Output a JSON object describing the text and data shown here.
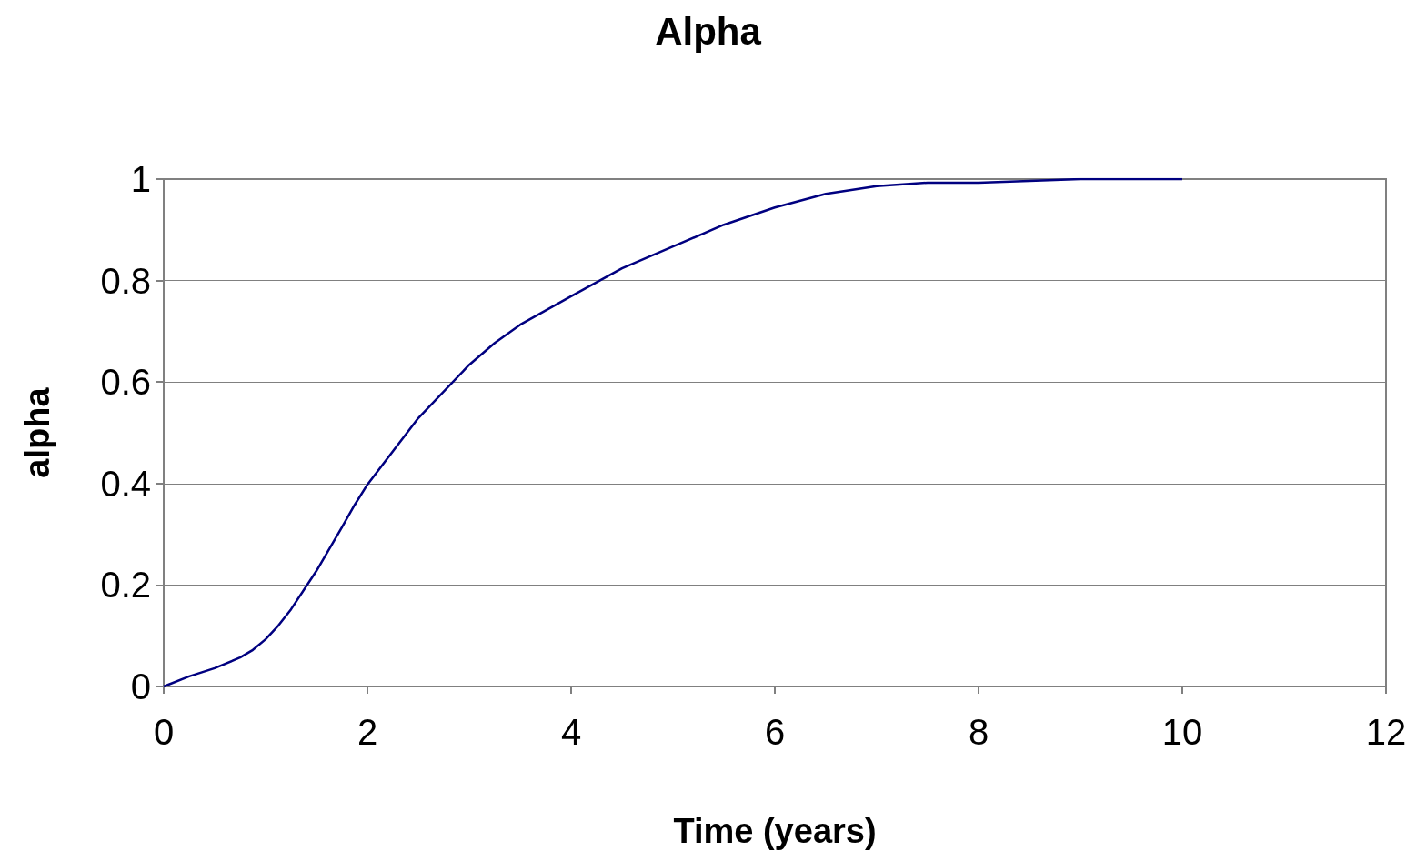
{
  "chart_data": {
    "type": "line",
    "title": "Alpha",
    "xlabel": "Time (years)",
    "ylabel": "alpha",
    "series": [
      {
        "color": "#000080",
        "x": [
          0,
          0.25,
          0.5,
          0.75,
          0.875,
          1,
          1.125,
          1.25,
          1.5,
          1.75,
          1.875,
          2,
          2.5,
          3,
          3.25,
          3.5,
          4,
          4.5,
          5,
          5.5,
          6,
          6.5,
          7,
          7.5,
          8,
          9,
          10
        ],
        "values": [
          0,
          0.02,
          0.036,
          0.057,
          0.072,
          0.093,
          0.12,
          0.152,
          0.228,
          0.314,
          0.358,
          0.398,
          0.529,
          0.634,
          0.677,
          0.713,
          0.769,
          0.824,
          0.867,
          0.91,
          0.944,
          0.971,
          0.986,
          0.993,
          0.993,
          1,
          1
        ]
      }
    ],
    "xlim": [
      0,
      12
    ],
    "xticks": [
      0,
      2,
      4,
      6,
      8,
      10,
      12
    ],
    "ylim": [
      0,
      1
    ],
    "yticks": [
      0,
      0.2,
      0.4,
      0.6,
      0.8,
      1
    ],
    "grid": "y",
    "marker": "none",
    "line_style": "solid"
  }
}
